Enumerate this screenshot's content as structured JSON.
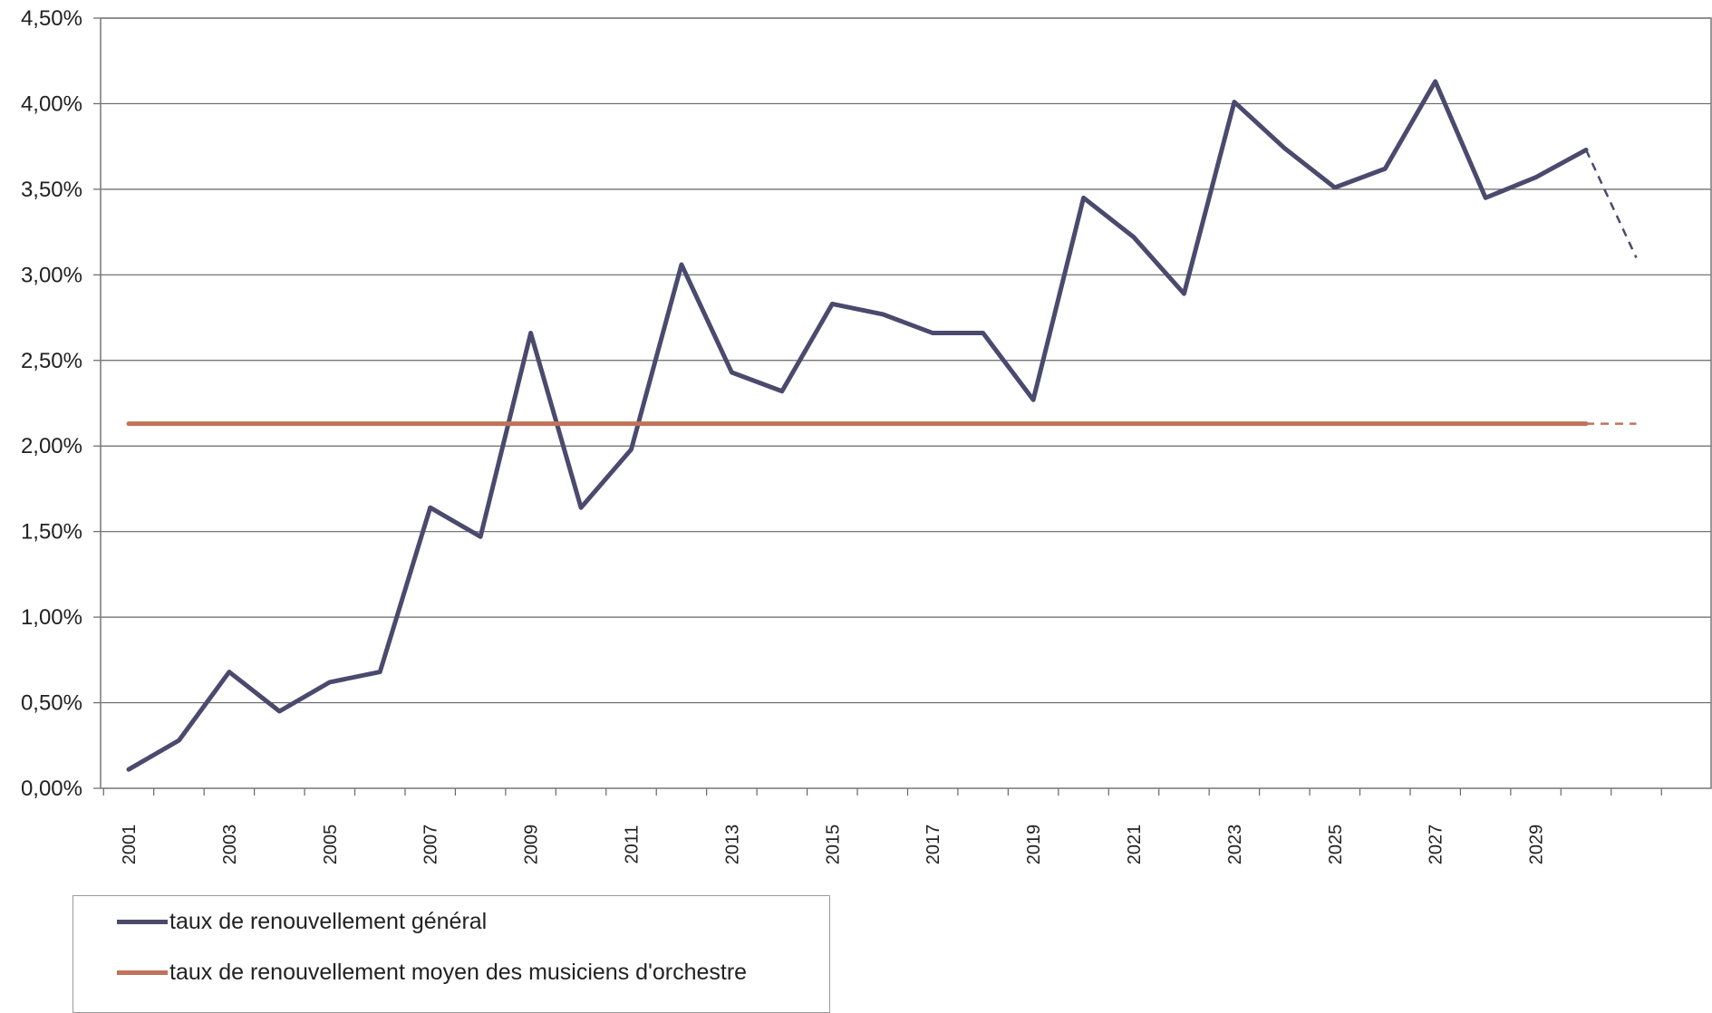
{
  "chart_data": {
    "type": "line",
    "x": [
      2001,
      2002,
      2003,
      2004,
      2005,
      2006,
      2007,
      2008,
      2009,
      2010,
      2011,
      2012,
      2013,
      2014,
      2015,
      2016,
      2017,
      2018,
      2019,
      2020,
      2021,
      2022,
      2023,
      2024,
      2025,
      2026,
      2027,
      2028,
      2029,
      2030,
      2031
    ],
    "x_tick_labels": [
      "2001",
      "2003",
      "2005",
      "2007",
      "2009",
      "2011",
      "2013",
      "2015",
      "2017",
      "2019",
      "2021",
      "2023",
      "2025",
      "2027",
      "2029"
    ],
    "y_tick_labels": [
      "0,00%",
      "0,50%",
      "1,00%",
      "1,50%",
      "2,00%",
      "2,50%",
      "3,00%",
      "3,50%",
      "4,00%",
      "4,50%"
    ],
    "ylim": [
      0,
      4.5
    ],
    "y_unit": "%",
    "grid": "horizontal",
    "legend_position": "bottom-left",
    "series": [
      {
        "name": "taux de renouvellement général",
        "color": "#4a4a6e",
        "values": [
          0.11,
          0.28,
          0.68,
          0.45,
          0.62,
          0.68,
          1.64,
          1.47,
          2.66,
          1.64,
          1.98,
          3.06,
          2.43,
          2.32,
          2.83,
          2.77,
          2.66,
          2.66,
          2.27,
          3.45,
          3.22,
          2.89,
          4.01,
          3.74,
          3.51,
          3.62,
          4.13,
          3.45,
          3.57,
          3.73,
          3.1
        ],
        "dashed_from_index": 29
      },
      {
        "name": "taux de renouvellement moyen des musiciens d'orchestre",
        "color": "#c0735a",
        "values": [
          2.13,
          2.13,
          2.13,
          2.13,
          2.13,
          2.13,
          2.13,
          2.13,
          2.13,
          2.13,
          2.13,
          2.13,
          2.13,
          2.13,
          2.13,
          2.13,
          2.13,
          2.13,
          2.13,
          2.13,
          2.13,
          2.13,
          2.13,
          2.13,
          2.13,
          2.13,
          2.13,
          2.13,
          2.13,
          2.13,
          2.13
        ],
        "dashed_from_index": 29
      }
    ]
  }
}
